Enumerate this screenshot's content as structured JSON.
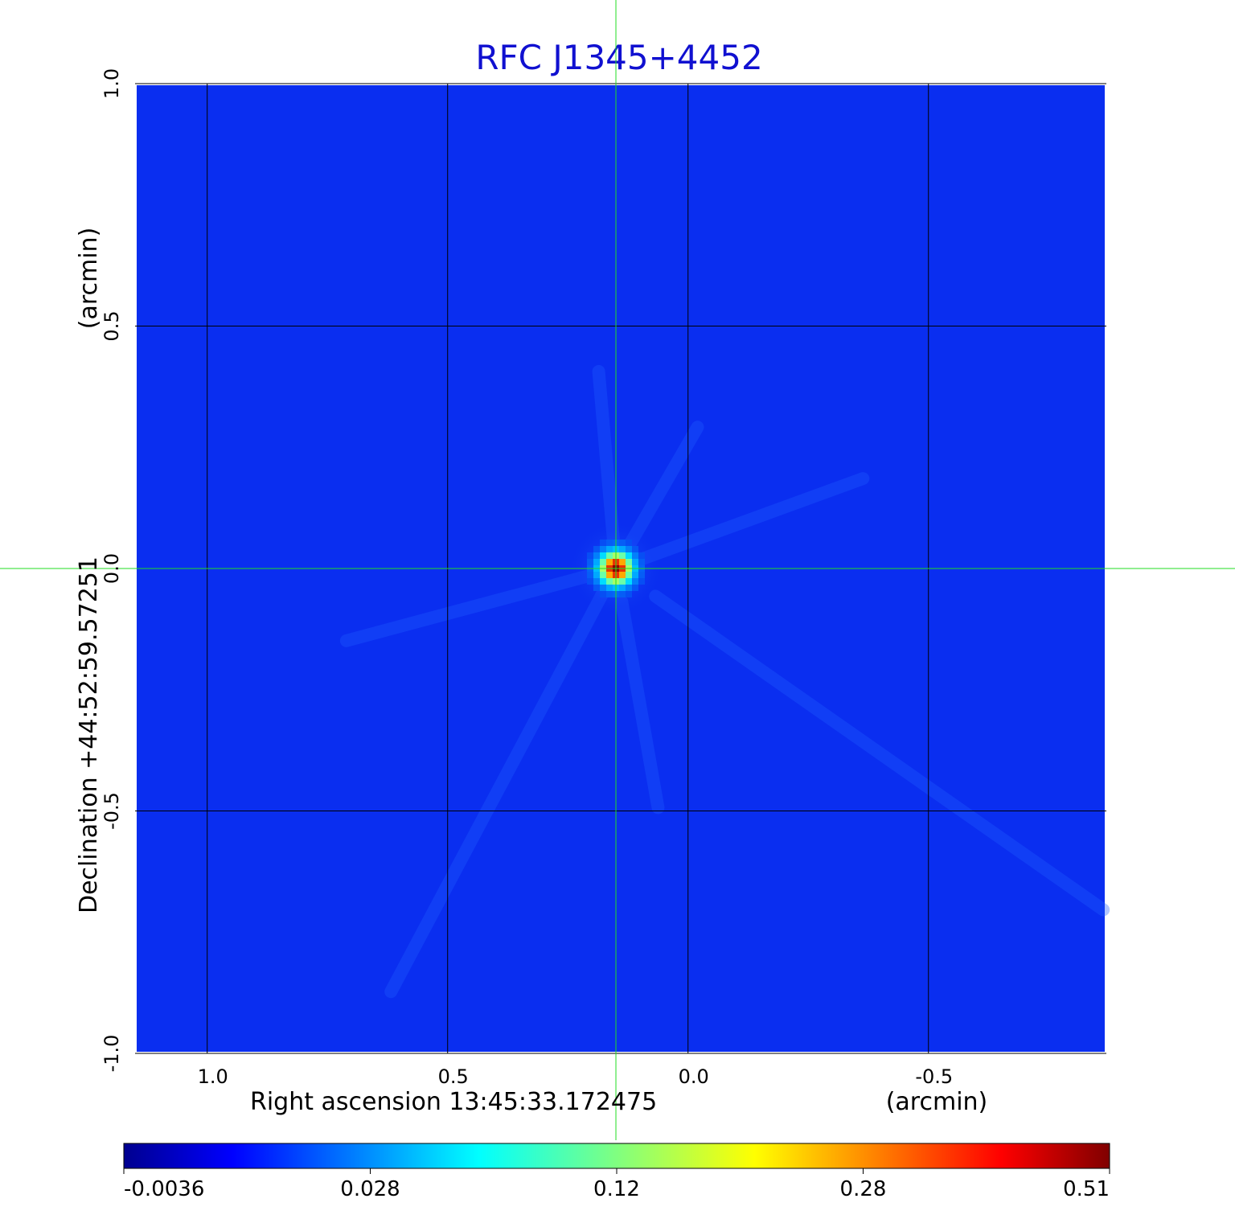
{
  "chart_data": {
    "type": "heatmap",
    "title": "RFC J1345+4452",
    "xlabel": "Right ascension  13:45:33.172475",
    "xunit": "(arcmin)",
    "ylabel": "Declination  +44:52:59.57251",
    "yunit": "(arcmin)",
    "x_ticks": [
      1.0,
      0.5,
      0.0,
      -0.5
    ],
    "x_tick_labels": [
      "1.0",
      "0.5",
      "0.0",
      "-0.5"
    ],
    "y_ticks": [
      1.0,
      0.5,
      0.0,
      -0.5,
      -1.0
    ],
    "y_tick_labels": [
      "1.0",
      "0.5",
      "0.0",
      "-0.5",
      "-1.0"
    ],
    "xlim": [
      1.15,
      -0.87
    ],
    "ylim": [
      -1.0,
      1.0
    ],
    "grid": true,
    "crosshair": {
      "x": 0.15,
      "y": 0.0
    },
    "source": {
      "x": 0.15,
      "y": 0.0,
      "peak": 0.51
    },
    "colorbar": {
      "tick_labels": [
        "-0.0036",
        "0.028",
        "0.12",
        "0.28",
        "0.51"
      ],
      "tick_values": [
        -0.0036,
        0.028,
        0.12,
        0.28,
        0.51
      ],
      "colormap": "jet"
    },
    "colors": {
      "title": "#1010d0",
      "background_field": "#0a2ef0",
      "crosshair": "#22dd22",
      "grid": "#000000"
    }
  }
}
